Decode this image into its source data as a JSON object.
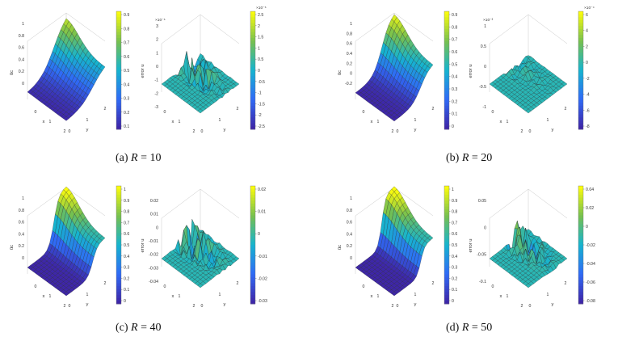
{
  "colors": {
    "parula_dark": "#3e26a8",
    "parula_blue": "#2f6bf6",
    "parula_cyan": "#16b4cf",
    "parula_green": "#76c04f",
    "parula_yellow": "#f9fb0e",
    "mesh_line": "#222222",
    "axis_line": "#bbbbbb"
  },
  "panels": [
    {
      "id": "a",
      "caption": {
        "prefix": "(a)",
        "var": "R",
        "rel": " = 10"
      },
      "solution": {
        "zlabel": "ũc",
        "zticks": [
          "1",
          "0.8",
          "0.6",
          "0.4",
          "0.2",
          "0"
        ],
        "xlabel": "x",
        "ylabel": "y",
        "xticks": [
          "2",
          "1",
          "0"
        ],
        "yticks": [
          "0",
          "1",
          "2"
        ],
        "colorbar": [
          "0.9",
          "0.8",
          "0.7",
          "0.6",
          "0.5",
          "0.4",
          "0.3",
          "0.2",
          "0.1"
        ]
      },
      "error": {
        "zlabel": "error u",
        "exponent": "×10⁻⁶",
        "zticks": [
          "3",
          "2",
          "1",
          "0",
          "-1",
          "-2",
          "-3"
        ],
        "xlabel": "x",
        "ylabel": "y",
        "xticks": [
          "2",
          "1",
          "0"
        ],
        "yticks": [
          "0",
          "1",
          "2"
        ],
        "colorbar_exponent": "×10⁻⁶",
        "colorbar": [
          "2.5",
          "2",
          "1.5",
          "1",
          "0.5",
          "0",
          "-0.5",
          "-1",
          "-1.5",
          "-2",
          "-2.5"
        ],
        "amplitude": 3
      }
    },
    {
      "id": "b",
      "caption": {
        "prefix": "(b)",
        "var": "R",
        "rel": " = 20"
      },
      "solution": {
        "zlabel": "ũc",
        "zticks": [
          "1",
          "0.8",
          "0.6",
          "0.4",
          "0.2",
          "0",
          "-0.2"
        ],
        "xlabel": "x",
        "ylabel": "y",
        "xticks": [
          "2",
          "1",
          "0"
        ],
        "yticks": [
          "0",
          "1",
          "2"
        ],
        "colorbar": [
          "0.9",
          "0.8",
          "0.7",
          "0.6",
          "0.5",
          "0.4",
          "0.3",
          "0.2",
          "0.1",
          "0"
        ]
      },
      "error": {
        "zlabel": "error u",
        "exponent": "×10⁻³",
        "zticks": [
          "1",
          "0.5",
          "0",
          "-0.5",
          "-1"
        ],
        "xlabel": "x",
        "ylabel": "y",
        "xticks": [
          "2",
          "1",
          "0"
        ],
        "yticks": [
          "0",
          "1",
          "2"
        ],
        "colorbar_exponent": "×10⁻⁴",
        "colorbar": [
          "6",
          "4",
          "2",
          "0",
          "-2",
          "-4",
          "-6",
          "-8"
        ],
        "amplitude": 1
      }
    },
    {
      "id": "c",
      "caption": {
        "prefix": "(c)",
        "var": "R",
        "rel": " = 40"
      },
      "solution": {
        "zlabel": "ũc",
        "zticks": [
          "1",
          "0.8",
          "0.6",
          "0.4",
          "0.2",
          "0"
        ],
        "xlabel": "x",
        "ylabel": "y",
        "xticks": [
          "2",
          "1",
          "0"
        ],
        "yticks": [
          "0",
          "1",
          "2"
        ],
        "colorbar": [
          "1",
          "0.9",
          "0.8",
          "0.7",
          "0.6",
          "0.5",
          "0.4",
          "0.3",
          "0.2",
          "0.1",
          "0"
        ]
      },
      "error": {
        "zlabel": "error u",
        "exponent": "",
        "zticks": [
          "0.02",
          "0.01",
          "0",
          "-0.01",
          "-0.02",
          "-0.03",
          "-0.04"
        ],
        "xlabel": "x",
        "ylabel": "y",
        "xticks": [
          "2",
          "1",
          "0"
        ],
        "yticks": [
          "0",
          "1",
          "2"
        ],
        "colorbar_exponent": "",
        "colorbar": [
          "0.02",
          "0.01",
          "0",
          "-0.01",
          "-0.02",
          "-0.03"
        ],
        "amplitude": 4
      }
    },
    {
      "id": "d",
      "caption": {
        "prefix": "(d)",
        "var": "R",
        "rel": " = 50"
      },
      "solution": {
        "zlabel": "ũc",
        "zticks": [
          "1",
          "0.8",
          "0.6",
          "0.4",
          "0.2",
          "0"
        ],
        "xlabel": "x",
        "ylabel": "y",
        "xticks": [
          "2",
          "1",
          "0"
        ],
        "yticks": [
          "0",
          "1",
          "2"
        ],
        "colorbar": [
          "1",
          "0.9",
          "0.8",
          "0.7",
          "0.6",
          "0.5",
          "0.4",
          "0.3",
          "0.2",
          "0.1",
          "0"
        ]
      },
      "error": {
        "zlabel": "error u",
        "exponent": "",
        "zticks": [
          "0.05",
          "0",
          "-0.05",
          "-0.1"
        ],
        "xlabel": "x",
        "ylabel": "y",
        "xticks": [
          "2",
          "1",
          "0"
        ],
        "yticks": [
          "0",
          "1",
          "2"
        ],
        "colorbar_exponent": "",
        "colorbar": [
          "0.04",
          "0.02",
          "0",
          "-0.02",
          "-0.04",
          "-0.06",
          "-0.08"
        ],
        "amplitude": 3
      }
    }
  ]
}
